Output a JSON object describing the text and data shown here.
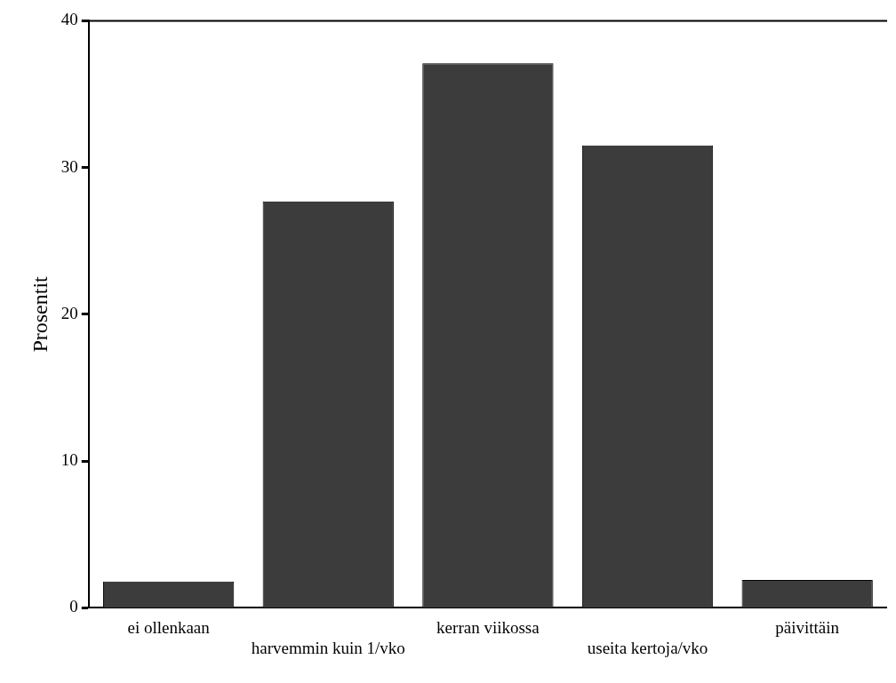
{
  "chart_data": {
    "type": "bar",
    "ylabel": "Prosentit",
    "categories": [
      "ei ollenkaan",
      "harvemmin kuin 1/vko",
      "kerran viikossa",
      "useita kertoja/vko",
      "päivittäin"
    ],
    "values": [
      1.8,
      27.7,
      37.1,
      31.5,
      1.9
    ],
    "color": "#3c3c3c",
    "ylim": [
      0,
      40
    ],
    "yticks": [
      0,
      10,
      20,
      30,
      40
    ],
    "grid": false,
    "legend": false
  }
}
